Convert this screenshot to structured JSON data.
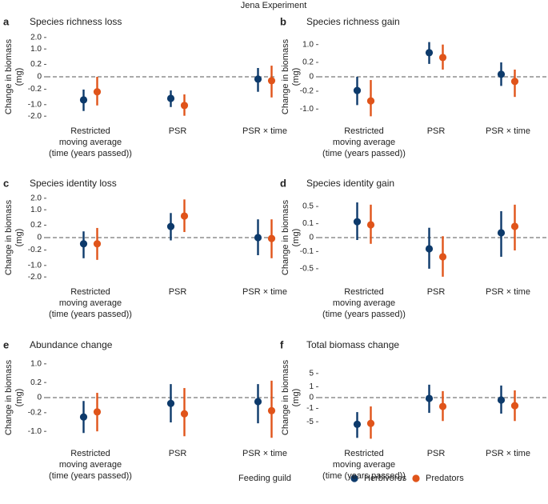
{
  "title": "Jena Experiment",
  "legend_title": "Feeding guild",
  "chart_data": [
    {
      "type": "errorbar",
      "letter": "a",
      "title": "Species richness loss",
      "y_label": "Change in biomass\n(mg)",
      "yscale": "sqrt",
      "categories": [
        "Restricted\nmoving average\n(time (years passed))",
        "PSR",
        "PSR × time"
      ],
      "ylim": [
        -2.5,
        2.5
      ],
      "yticks": [
        {
          "value": 2,
          "label": "2.0"
        },
        {
          "value": 1,
          "label": "1.0"
        },
        0.2,
        0,
        -0.2,
        {
          "value": -1,
          "label": "-1.0"
        },
        {
          "value": -2,
          "label": "-2.0"
        }
      ],
      "hline": 0,
      "series": [
        {
          "name": "Herbivores",
          "color": "#0d3a6b",
          "values": [
            -0.69,
            -0.6,
            -0.007
          ],
          "lower": [
            -1.51,
            -1.18,
            -0.29
          ],
          "upper": [
            -0.21,
            -0.24,
            0.1
          ]
        },
        {
          "name": "Predators",
          "color": "#e0541a",
          "values": [
            -0.29,
            -1.06,
            -0.02
          ],
          "lower": [
            -1.06,
            -1.96,
            -0.55
          ],
          "upper": [
            0,
            -0.4,
            0.16
          ]
        }
      ]
    },
    {
      "type": "errorbar",
      "letter": "b",
      "title": "Species richness gain",
      "y_label": "Change in biomass\n(mg)",
      "yscale": "sqrt",
      "categories": [
        "Restricted\nmoving average\n(time (years passed))",
        "PSR",
        "PSR × time"
      ],
      "ylim": [
        -2,
        2
      ],
      "yticks": [
        {
          "value": 1,
          "label": "1.0"
        },
        0.2,
        0,
        -0.2,
        {
          "value": -1,
          "label": "-1.0"
        }
      ],
      "hline": 0,
      "series": [
        {
          "name": "Herbivores",
          "color": "#0d3a6b",
          "values": [
            -0.18,
            0.56,
            0.006
          ],
          "lower": [
            -0.77,
            0.16,
            -0.08
          ],
          "upper": [
            0,
            1.16,
            0.2
          ]
        },
        {
          "name": "Predators",
          "color": "#e0541a",
          "values": [
            -0.56,
            0.36,
            -0.02
          ],
          "lower": [
            -1.5,
            0.05,
            -0.39
          ],
          "upper": [
            -0.01,
            1,
            0.05
          ]
        }
      ]
    },
    {
      "type": "errorbar",
      "letter": "c",
      "title": "Species identity loss",
      "y_label": "Change in biomass\n(mg)",
      "yscale": "sqrt",
      "categories": [
        "Restricted\nmoving average\n(time (years passed))",
        "PSR",
        "PSR × time"
      ],
      "ylim": [
        -2.5,
        2.5
      ],
      "yticks": [
        {
          "value": 2,
          "label": "2.0"
        },
        {
          "value": 1,
          "label": "1.0"
        },
        0.2,
        0,
        -0.2,
        {
          "value": -1,
          "label": "-1.0"
        },
        {
          "value": -2,
          "label": "-2.0"
        }
      ],
      "hline": 0,
      "series": [
        {
          "name": "Herbivores",
          "color": "#0d3a6b",
          "values": [
            -0.05,
            0.16,
            0
          ],
          "lower": [
            -0.55,
            -0.01,
            -0.4
          ],
          "upper": [
            0.05,
            0.78,
            0.43
          ]
        },
        {
          "name": "Predators",
          "color": "#e0541a",
          "values": [
            -0.05,
            0.6,
            -0.001
          ],
          "lower": [
            -0.64,
            0.04,
            -0.55
          ],
          "upper": [
            0.12,
            1.88,
            0.43
          ]
        }
      ]
    },
    {
      "type": "errorbar",
      "letter": "d",
      "title": "Species identity gain",
      "y_label": "Change in biomass\n(mg)",
      "yscale": "sqrt",
      "categories": [
        "Restricted\nmoving average\n(time (years passed))",
        "PSR",
        "PSR × time"
      ],
      "ylim": [
        -1,
        1
      ],
      "yticks": [
        0.5,
        0.1,
        0,
        -0.1,
        -0.5
      ],
      "hline": 0,
      "series": [
        {
          "name": "Herbivores",
          "color": "#0d3a6b",
          "values": [
            0.13,
            -0.065,
            0.012
          ],
          "lower": [
            -0.003,
            -0.5,
            -0.19
          ],
          "upper": [
            0.64,
            0.05,
            0.36
          ]
        },
        {
          "name": "Predators",
          "color": "#e0541a",
          "values": [
            0.085,
            -0.19,
            0.065
          ],
          "lower": [
            -0.02,
            -0.79,
            -0.085
          ],
          "upper": [
            0.56,
            0.001,
            0.56
          ]
        }
      ]
    },
    {
      "type": "errorbar",
      "letter": "e",
      "title": "Abundance change",
      "y_label": "Change in biomass\n(mg)",
      "yscale": "sqrt",
      "categories": [
        "Restricted\nmoving average\n(time (years passed))",
        "PSR",
        "PSR × time"
      ],
      "ylim": [
        -1.7,
        1.7
      ],
      "yticks": [
        {
          "value": 1,
          "label": "1.0"
        },
        0.2,
        0,
        -0.2,
        {
          "value": -1,
          "label": "-1.0"
        }
      ],
      "hline": 0,
      "series": [
        {
          "name": "Herbivores",
          "color": "#0d3a6b",
          "values": [
            -0.33,
            -0.03,
            -0.014
          ],
          "lower": [
            -1.1,
            -0.54,
            -0.58
          ],
          "upper": [
            -0.01,
            0.16,
            0.16
          ]
        },
        {
          "name": "Predators",
          "color": "#e0541a",
          "values": [
            -0.18,
            -0.23,
            -0.15
          ],
          "lower": [
            -1,
            -1.31,
            -1.42
          ],
          "upper": [
            0.02,
            0.08,
            0.25
          ]
        }
      ]
    },
    {
      "type": "errorbar",
      "letter": "f",
      "title": "Total biomass change",
      "y_label": "Change in biomass\n(mg)",
      "yscale": "sqrt",
      "categories": [
        "Restricted\nmoving average\n(time (years passed))",
        "PSR",
        "PSR × time"
      ],
      "ylim": [
        -16,
        16
      ],
      "yticks": [
        5,
        1,
        0,
        -1,
        -5
      ],
      "hline": 0,
      "series": [
        {
          "name": "Herbivores",
          "color": "#0d3a6b",
          "values": [
            -6.1,
            -0.006,
            -0.05
          ],
          "lower": [
            -13.9,
            -2,
            -2.2
          ],
          "upper": [
            -1.8,
            1.43,
            1.25
          ]
        },
        {
          "name": "Predators",
          "color": "#e0541a",
          "values": [
            -5.7,
            -0.67,
            -0.56
          ],
          "lower": [
            -14.5,
            -4.7,
            -4.7
          ],
          "upper": [
            -0.67,
            0.36,
            0.45
          ]
        }
      ]
    }
  ]
}
